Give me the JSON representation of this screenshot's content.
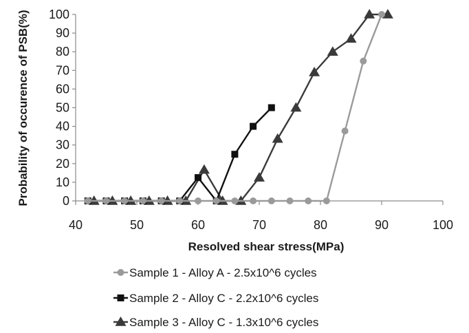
{
  "chart_data": {
    "type": "line",
    "title": "",
    "xlabel": "Resolved shear stress(MPa)",
    "ylabel": "Probability of occurence of PSB(%)",
    "xlim": [
      40,
      100
    ],
    "ylim": [
      0,
      100
    ],
    "x_ticks": [
      40,
      50,
      60,
      70,
      80,
      90,
      100
    ],
    "y_ticks": [
      0,
      10,
      20,
      30,
      40,
      50,
      60,
      70,
      80,
      90,
      100
    ],
    "grid": false,
    "legend_position": "bottom",
    "series": [
      {
        "name": "Sample 1 - Alloy A - 2.5x10^6 cycles",
        "color": "#9a9a9a",
        "marker": "circle",
        "x": [
          42,
          45,
          48,
          51,
          54,
          57,
          60,
          63,
          66,
          69,
          72,
          75,
          78,
          81,
          84,
          87,
          90
        ],
        "y": [
          0,
          0,
          0,
          0,
          0,
          0,
          0,
          0,
          0,
          0,
          0,
          0,
          0,
          0,
          37.5,
          75,
          100
        ]
      },
      {
        "name": "Sample 2 - Alloy C - 2.2x10^6 cycles",
        "color": "#111111",
        "marker": "square",
        "x": [
          42,
          45,
          48,
          51,
          54,
          57,
          60,
          63,
          66,
          69,
          72
        ],
        "y": [
          0,
          0,
          0,
          0,
          0,
          0,
          12.5,
          0,
          25,
          40,
          50
        ]
      },
      {
        "name": "Sample 3 - Alloy C - 1.3x10^6 cycles",
        "color": "#3a3a3a",
        "marker": "triangle",
        "x": [
          43,
          46,
          49,
          52,
          55,
          58,
          61,
          64,
          67,
          70,
          73,
          76,
          79,
          82,
          85,
          88,
          91
        ],
        "y": [
          0,
          0,
          0,
          0,
          0,
          0,
          16.7,
          0,
          0,
          12.5,
          33.3,
          50,
          69,
          80,
          87,
          100,
          100
        ]
      }
    ]
  }
}
